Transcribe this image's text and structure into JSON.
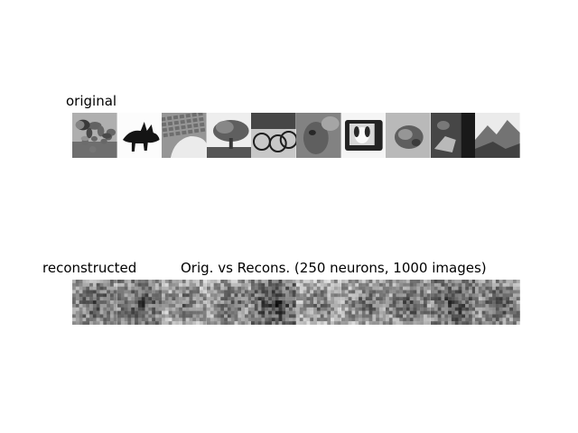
{
  "figure": {
    "original_title": "original",
    "reconstructed_title": "reconstructed",
    "comparison_title": "Orig. vs Recons. (250 neurons, 1000 images)"
  },
  "original_row": {
    "images": [
      "grayscale-photo-plants",
      "grayscale-photo-dinosaur-silhouette",
      "grayscale-photo-hand-on-keyboard",
      "grayscale-photo-tree",
      "grayscale-photo-bicycles",
      "grayscale-photo-animal-closeup",
      "grayscale-photo-dog-in-tv",
      "grayscale-photo-cat",
      "grayscale-photo-dark-scene",
      "grayscale-photo-mountains"
    ]
  },
  "reconstructed_row": {
    "images": [
      "noisy-reconstruction-1",
      "noisy-reconstruction-2",
      "noisy-reconstruction-3",
      "noisy-reconstruction-4",
      "noisy-reconstruction-5",
      "noisy-reconstruction-6",
      "noisy-reconstruction-7",
      "noisy-reconstruction-8",
      "noisy-reconstruction-9",
      "noisy-reconstruction-10"
    ]
  }
}
